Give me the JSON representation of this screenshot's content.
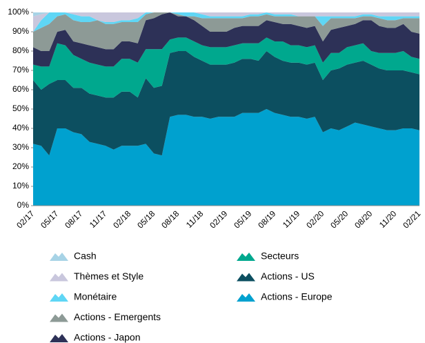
{
  "chart_data": {
    "type": "stacked_area",
    "categories": [
      "02/17",
      null,
      null,
      "05/17",
      null,
      null,
      "08/17",
      null,
      null,
      "11/17",
      null,
      null,
      "02/18",
      null,
      null,
      "05/18",
      null,
      null,
      "08/18",
      null,
      null,
      "11/18",
      null,
      null,
      "02/19",
      null,
      null,
      "05/19",
      null,
      null,
      "08/19",
      null,
      null,
      "11/19",
      null,
      null,
      "02/20",
      null,
      null,
      "05/20",
      null,
      null,
      "08/20",
      null,
      null,
      "11/20",
      null,
      null,
      "02/21"
    ],
    "series": [
      {
        "name": "Cash",
        "color": "#a7d3e6",
        "values": [
          2,
          1,
          0,
          0,
          0,
          0,
          0,
          0,
          0,
          0,
          0,
          0,
          0,
          0,
          0,
          0,
          0,
          0,
          0,
          0,
          0,
          0,
          0,
          0,
          0,
          0,
          0,
          0,
          0,
          0,
          0,
          0,
          0,
          0,
          0,
          0,
          0,
          0,
          0,
          0,
          0,
          0,
          0,
          0,
          0,
          0,
          0,
          0,
          0
        ]
      },
      {
        "name": "Thèmes et Style",
        "color": "#c9c7dd",
        "values": [
          8,
          3,
          0,
          0,
          0,
          1,
          2,
          2,
          4,
          5,
          5,
          4,
          4,
          3,
          0,
          0,
          0,
          0,
          0,
          0,
          0,
          1,
          2,
          2,
          2,
          2,
          2,
          1,
          1,
          0,
          1,
          1,
          1,
          2,
          2,
          2,
          2,
          2,
          2,
          2,
          2,
          1,
          1,
          2,
          2,
          2,
          2,
          2,
          2
        ]
      },
      {
        "name": "Monétaire",
        "color": "#5fd6f5",
        "values": [
          0,
          4,
          6,
          2,
          1,
          3,
          3,
          3,
          0,
          1,
          1,
          1,
          1,
          2,
          1,
          0,
          0,
          0,
          1,
          2,
          2,
          2,
          1,
          1,
          1,
          1,
          1,
          1,
          1,
          1,
          1,
          1,
          1,
          0,
          0,
          0,
          5,
          1,
          1,
          1,
          1,
          1,
          1,
          1,
          2,
          2,
          1,
          1,
          1
        ]
      },
      {
        "name": "Actions - Emergents",
        "color": "#8d9a96",
        "values": [
          8,
          12,
          14,
          8,
          8,
          11,
          11,
          12,
          14,
          13,
          13,
          10,
          10,
          11,
          3,
          3,
          1,
          0,
          1,
          0,
          2,
          4,
          7,
          7,
          7,
          5,
          4,
          5,
          5,
          3,
          3,
          4,
          4,
          5,
          6,
          5,
          8,
          6,
          5,
          4,
          3,
          2,
          2,
          4,
          4,
          4,
          3,
          7,
          8
        ]
      },
      {
        "name": "Actions - Japon",
        "color": "#2d3157",
        "values": [
          9,
          8,
          8,
          6,
          8,
          7,
          8,
          9,
          9,
          9,
          9,
          9,
          9,
          10,
          15,
          16,
          18,
          14,
          11,
          11,
          11,
          10,
          8,
          8,
          8,
          9,
          9,
          9,
          9,
          9,
          10,
          9,
          11,
          10,
          10,
          10,
          11,
          12,
          13,
          11,
          11,
          12,
          16,
          14,
          13,
          13,
          14,
          13,
          13
        ]
      },
      {
        "name": "Secteurs",
        "color": "#00a88e",
        "values": [
          8,
          12,
          9,
          19,
          18,
          17,
          15,
          16,
          16,
          16,
          16,
          17,
          17,
          18,
          15,
          20,
          19,
          7,
          7,
          7,
          8,
          8,
          9,
          9,
          9,
          9,
          8,
          8,
          9,
          7,
          8,
          10,
          9,
          9,
          9,
          9,
          9,
          9,
          8,
          9,
          9,
          9,
          7,
          8,
          9,
          9,
          10,
          8,
          8
        ]
      },
      {
        "name": "Actions - US",
        "color": "#0c4f60",
        "values": [
          33,
          29,
          37,
          25,
          25,
          23,
          24,
          25,
          25,
          25,
          27,
          28,
          28,
          25,
          34,
          34,
          36,
          33,
          33,
          33,
          31,
          29,
          28,
          27,
          27,
          28,
          28,
          28,
          27,
          30,
          29,
          28,
          28,
          28,
          28,
          28,
          27,
          30,
          32,
          32,
          31,
          33,
          32,
          31,
          31,
          31,
          30,
          29,
          29
        ]
      },
      {
        "name": "Actions - Europe",
        "color": "#00a1cf",
        "values": [
          32,
          31,
          26,
          40,
          40,
          38,
          37,
          33,
          32,
          31,
          29,
          31,
          31,
          31,
          32,
          27,
          26,
          46,
          47,
          47,
          46,
          46,
          45,
          46,
          46,
          46,
          48,
          48,
          48,
          50,
          48,
          47,
          46,
          46,
          45,
          46,
          38,
          40,
          39,
          41,
          43,
          42,
          41,
          40,
          39,
          39,
          40,
          40,
          39
        ]
      }
    ],
    "ylim": [
      0,
      100
    ],
    "yticks": [
      {
        "value": 0,
        "label": "0%"
      },
      {
        "value": 10,
        "label": "10%"
      },
      {
        "value": 20,
        "label": "20%"
      },
      {
        "value": 30,
        "label": "30%"
      },
      {
        "value": 40,
        "label": "40%"
      },
      {
        "value": 50,
        "label": "50%"
      },
      {
        "value": 60,
        "label": "60%"
      },
      {
        "value": 70,
        "label": "70%"
      },
      {
        "value": 80,
        "label": "80%"
      },
      {
        "value": 90,
        "label": "90%"
      },
      {
        "value": 100,
        "label": "100%"
      }
    ]
  }
}
